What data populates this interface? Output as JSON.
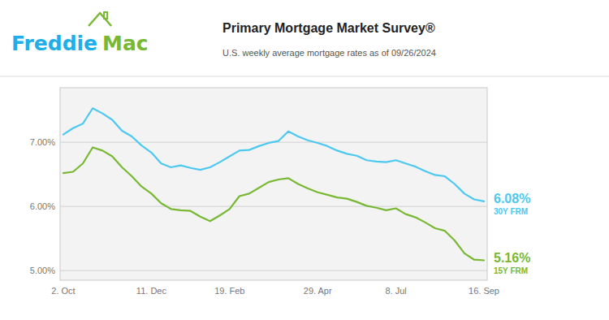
{
  "chart_data": {
    "type": "line",
    "title": "Primary Mortgage Market Survey®",
    "subtitle": "U.S. weekly average mortgage rates as of 09/26/2024",
    "annotations": [
      {
        "text": "Freddie",
        "color": "#1eaee8"
      },
      {
        "text": "Mac",
        "color": "#78b833"
      }
    ],
    "categories": [
      "2. Oct",
      null,
      null,
      null,
      null,
      null,
      null,
      null,
      null,
      "11. Dec",
      null,
      null,
      null,
      null,
      null,
      null,
      null,
      "19. Feb",
      null,
      null,
      null,
      null,
      null,
      null,
      null,
      null,
      "29. Apr",
      null,
      null,
      null,
      null,
      null,
      null,
      null,
      "8. Jul",
      null,
      null,
      null,
      null,
      null,
      null,
      null,
      null,
      "16. Sep"
    ],
    "series": [
      {
        "name": "30Y FRM",
        "color": "#4dc8f0",
        "values": [
          7.12,
          7.22,
          7.29,
          7.53,
          7.45,
          7.35,
          7.18,
          7.09,
          6.95,
          6.84,
          6.67,
          6.61,
          6.64,
          6.6,
          6.57,
          6.61,
          6.69,
          6.78,
          6.87,
          6.88,
          6.94,
          6.99,
          7.02,
          7.17,
          7.09,
          7.03,
          6.99,
          6.94,
          6.87,
          6.82,
          6.79,
          6.72,
          6.7,
          6.69,
          6.72,
          6.67,
          6.62,
          6.55,
          6.49,
          6.47,
          6.35,
          6.2,
          6.11,
          6.08
        ],
        "value_labels": [
          null,
          null,
          null,
          null,
          null,
          null,
          null,
          null,
          null,
          null,
          null,
          null,
          null,
          null,
          null,
          null,
          null,
          null,
          null,
          null,
          null,
          null,
          null,
          null,
          null,
          null,
          null,
          null,
          null,
          null,
          null,
          null,
          null,
          null,
          null,
          null,
          null,
          null,
          null,
          null,
          null,
          null,
          null,
          "6.08%"
        ]
      },
      {
        "name": "15Y FRM",
        "color": "#78b833",
        "values": [
          6.52,
          6.54,
          6.67,
          6.92,
          6.87,
          6.78,
          6.61,
          6.47,
          6.31,
          6.2,
          6.05,
          5.96,
          5.94,
          5.93,
          5.84,
          5.77,
          5.86,
          5.96,
          6.16,
          6.2,
          6.29,
          6.38,
          6.42,
          6.44,
          6.35,
          6.28,
          6.22,
          6.18,
          6.14,
          6.12,
          6.07,
          6.01,
          5.98,
          5.94,
          5.97,
          5.88,
          5.83,
          5.75,
          5.66,
          5.62,
          5.47,
          5.27,
          5.17,
          5.16
        ],
        "value_labels": [
          null,
          null,
          null,
          null,
          null,
          null,
          null,
          null,
          null,
          null,
          null,
          null,
          null,
          null,
          null,
          null,
          null,
          null,
          null,
          null,
          null,
          null,
          null,
          null,
          null,
          null,
          null,
          null,
          null,
          null,
          null,
          null,
          null,
          null,
          null,
          null,
          null,
          null,
          null,
          null,
          null,
          null,
          null,
          "5.16%"
        ]
      }
    ],
    "ylim": [
      4.85,
      7.85
    ],
    "yticks": [
      {
        "value": 5.0,
        "label": "5.00%"
      },
      {
        "value": 6.0,
        "label": "6.00%"
      },
      {
        "value": 7.0,
        "label": "7.00%"
      }
    ],
    "grid": true
  }
}
